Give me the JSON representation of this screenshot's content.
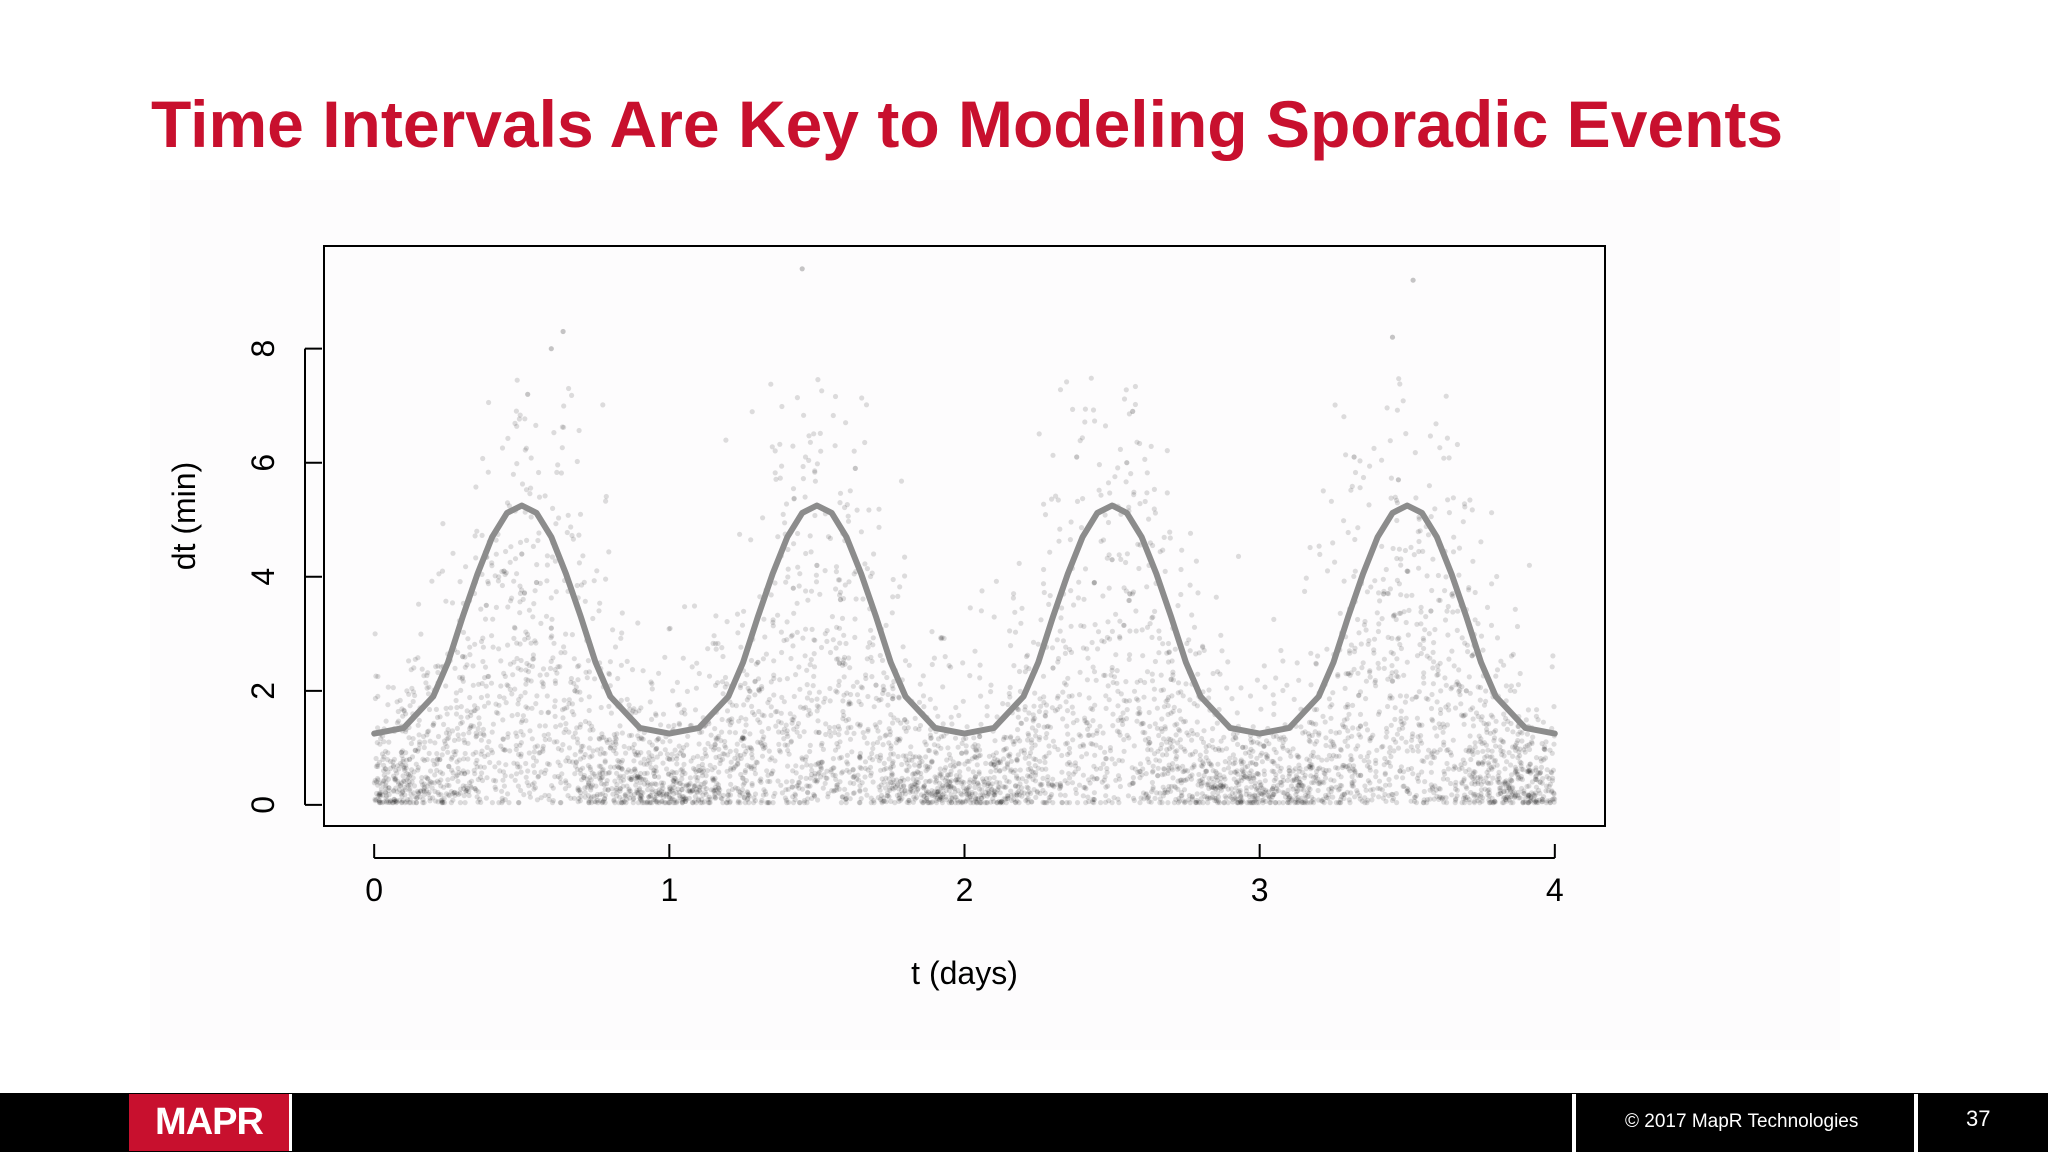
{
  "slide": {
    "title": "Time Intervals Are Key to Modeling Sporadic Events",
    "brand_color": "#c8102e"
  },
  "footer": {
    "logo_text": "MAPR",
    "copyright": "© 2017 MapR Technologies",
    "page_number": "37"
  },
  "chart_data": {
    "type": "scatter",
    "title": "",
    "xlabel": "t (days)",
    "ylabel": "dt (min)",
    "xlim": [
      -0.17,
      4.17
    ],
    "ylim": [
      -0.37,
      9.8
    ],
    "x_ticks": [
      0,
      1,
      2,
      3,
      4
    ],
    "y_ticks": [
      0,
      2,
      4,
      6,
      8
    ],
    "grid": false,
    "legend": "none",
    "point_color": "#000000",
    "point_opacity": 0.13,
    "curve_color": "#8c8c8c",
    "series": [
      {
        "kind": "points",
        "x": [
          0.05,
          0.12,
          0.2,
          0.3,
          0.38,
          0.44,
          0.5,
          0.55,
          0.6,
          0.68,
          0.8,
          0.95,
          1.1,
          1.3,
          1.42,
          1.5,
          1.58,
          1.7,
          1.95,
          2.1,
          2.3,
          2.44,
          2.5,
          2.56,
          2.7,
          2.95,
          3.1,
          3.3,
          3.42,
          3.5,
          3.58,
          3.7,
          3.95,
          0.52,
          0.6,
          0.64,
          1.45,
          1.63,
          2.38,
          2.55,
          2.57,
          3.32,
          3.45,
          3.47,
          3.52
        ],
        "y": [
          0.3,
          0.8,
          1.4,
          2.6,
          3.5,
          4.1,
          4.4,
          3.9,
          3.1,
          2.0,
          1.0,
          0.5,
          0.6,
          2.5,
          3.8,
          4.2,
          3.6,
          2.1,
          0.4,
          0.7,
          2.4,
          3.9,
          4.3,
          3.7,
          2.2,
          0.5,
          0.6,
          2.3,
          3.7,
          4.1,
          3.4,
          2.0,
          0.4,
          7.2,
          8.0,
          8.3,
          9.4,
          5.9,
          6.1,
          6.0,
          6.9,
          6.1,
          8.2,
          5.7,
          9.2
        ]
      },
      {
        "kind": "curve",
        "x": [
          0,
          0.1,
          0.2,
          0.25,
          0.3,
          0.35,
          0.4,
          0.45,
          0.5,
          0.55,
          0.6,
          0.65,
          0.7,
          0.75,
          0.8,
          0.9,
          1.0,
          1.1,
          1.2,
          1.25,
          1.3,
          1.35,
          1.4,
          1.45,
          1.5,
          1.55,
          1.6,
          1.65,
          1.7,
          1.75,
          1.8,
          1.9,
          2.0,
          2.1,
          2.2,
          2.25,
          2.3,
          2.35,
          2.4,
          2.45,
          2.5,
          2.55,
          2.6,
          2.65,
          2.7,
          2.75,
          2.8,
          2.9,
          3.0,
          3.1,
          3.2,
          3.25,
          3.3,
          3.35,
          3.4,
          3.45,
          3.5,
          3.55,
          3.6,
          3.65,
          3.7,
          3.75,
          3.8,
          3.9,
          4.0
        ],
        "y": [
          1.25,
          1.35,
          1.9,
          2.5,
          3.3,
          4.05,
          4.7,
          5.12,
          5.25,
          5.12,
          4.7,
          4.05,
          3.3,
          2.5,
          1.9,
          1.35,
          1.25,
          1.35,
          1.9,
          2.5,
          3.3,
          4.05,
          4.7,
          5.12,
          5.25,
          5.12,
          4.7,
          4.05,
          3.3,
          2.5,
          1.9,
          1.35,
          1.25,
          1.35,
          1.9,
          2.5,
          3.3,
          4.05,
          4.7,
          5.12,
          5.25,
          5.12,
          4.7,
          4.05,
          3.3,
          2.5,
          1.9,
          1.35,
          1.25,
          1.35,
          1.9,
          2.5,
          3.3,
          4.05,
          4.7,
          5.12,
          5.25,
          5.12,
          4.7,
          4.05,
          3.3,
          2.5,
          1.9,
          1.35,
          1.25
        ]
      }
    ]
  }
}
